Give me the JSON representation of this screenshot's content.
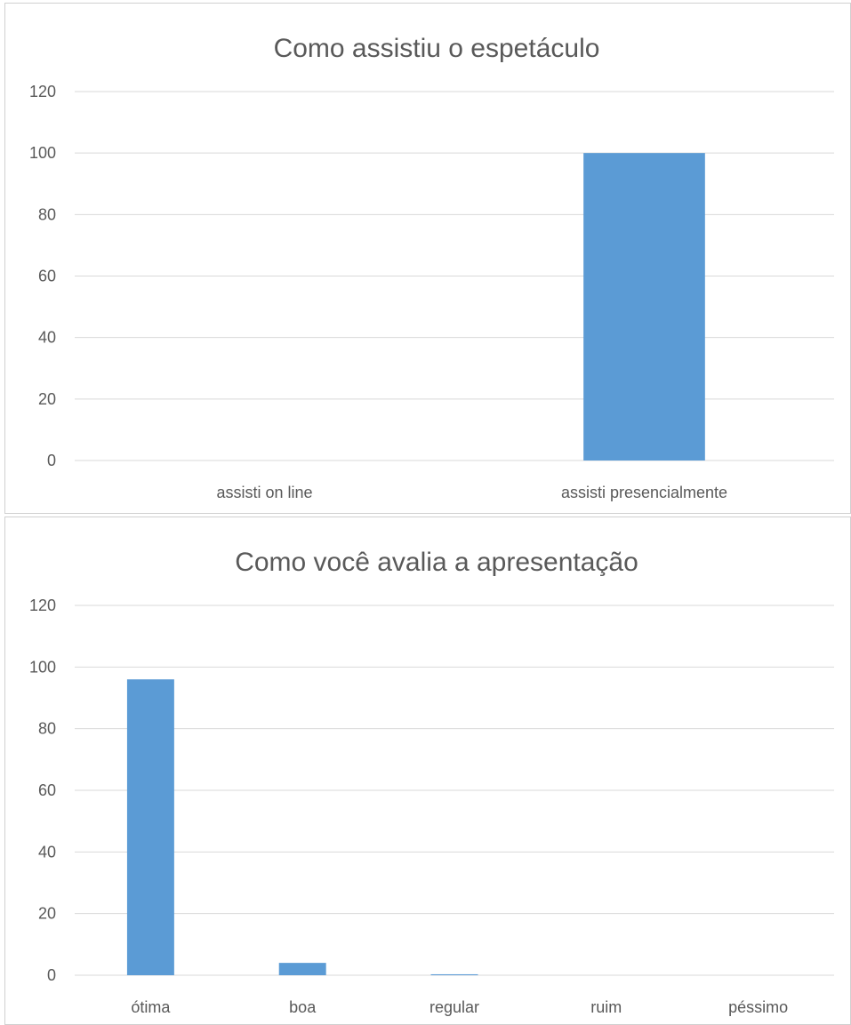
{
  "colors": {
    "bar": "#5b9bd5",
    "grid": "#d9d9d9",
    "text": "#595959"
  },
  "chart_data": [
    {
      "type": "bar",
      "title": "Como assistiu o espetáculo",
      "categories": [
        "assisti on line",
        "assisti presencialmente"
      ],
      "values": [
        0,
        100
      ],
      "ylim": [
        0,
        120
      ],
      "yticks": [
        0,
        20,
        40,
        60,
        80,
        100,
        120
      ],
      "grid": true,
      "legend": "none"
    },
    {
      "type": "bar",
      "title": "Como você avalia a apresentação",
      "categories": [
        "ótima",
        "boa",
        "regular",
        "ruim",
        "péssimo"
      ],
      "values": [
        96,
        4,
        0.3,
        0,
        0
      ],
      "ylim": [
        0,
        120
      ],
      "yticks": [
        0,
        20,
        40,
        60,
        80,
        100,
        120
      ],
      "grid": true,
      "legend": "none"
    }
  ]
}
